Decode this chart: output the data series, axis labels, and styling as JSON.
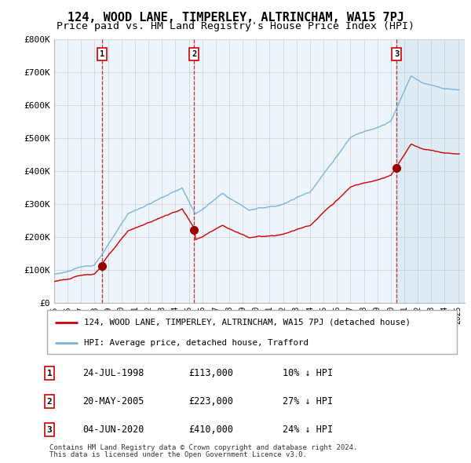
{
  "title": "124, WOOD LANE, TIMPERLEY, ALTRINCHAM, WA15 7PJ",
  "subtitle": "Price paid vs. HM Land Registry's House Price Index (HPI)",
  "ylim": [
    0,
    800000
  ],
  "yticks": [
    0,
    100000,
    200000,
    300000,
    400000,
    500000,
    600000,
    700000,
    800000
  ],
  "ytick_labels": [
    "£0",
    "£100K",
    "£200K",
    "£300K",
    "£400K",
    "£500K",
    "£600K",
    "£700K",
    "£800K"
  ],
  "xlim_start": 1995.0,
  "xlim_end": 2025.5,
  "sale_dates": [
    1998.556,
    2005.384,
    2020.421
  ],
  "sale_prices": [
    113000,
    223000,
    410000
  ],
  "sale_labels": [
    "1",
    "2",
    "3"
  ],
  "hpi_color": "#7ab4d8",
  "hpi_fill_color": "#ddeeff",
  "sale_color": "#cc0000",
  "sale_dot_color": "#990000",
  "legend_sale_label": "124, WOOD LANE, TIMPERLEY, ALTRINCHAM, WA15 7PJ (detached house)",
  "legend_hpi_label": "HPI: Average price, detached house, Trafford",
  "table_rows": [
    [
      "1",
      "24-JUL-1998",
      "£113,000",
      "10% ↓ HPI"
    ],
    [
      "2",
      "20-MAY-2005",
      "£223,000",
      "27% ↓ HPI"
    ],
    [
      "3",
      "04-JUN-2020",
      "£410,000",
      "24% ↓ HPI"
    ]
  ],
  "footnote1": "Contains HM Land Registry data © Crown copyright and database right 2024.",
  "footnote2": "This data is licensed under the Open Government Licence v3.0.",
  "grid_color": "#cccccc",
  "title_fontsize": 11,
  "subtitle_fontsize": 9.5,
  "shade_color": "#e8f0f8"
}
